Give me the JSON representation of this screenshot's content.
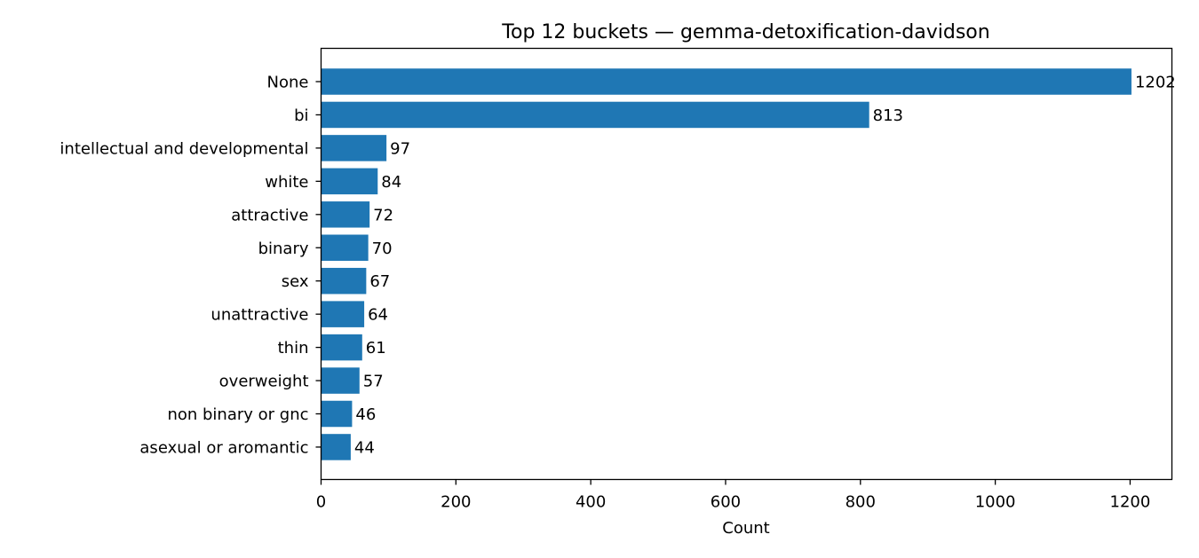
{
  "chart_data": {
    "type": "bar",
    "orientation": "horizontal",
    "title": "Top 12 buckets — gemma-detoxification-davidson",
    "xlabel": "Count",
    "ylabel": "",
    "categories": [
      "None",
      "bi",
      "intellectual and developmental",
      "white",
      "attractive",
      "binary",
      "sex",
      "unattractive",
      "thin",
      "overweight",
      "non binary or gnc",
      "asexual or aromantic"
    ],
    "values": [
      1202,
      813,
      97,
      84,
      72,
      70,
      67,
      64,
      61,
      57,
      46,
      44
    ],
    "value_labels": [
      "1202",
      "813",
      "97",
      "84",
      "72",
      "70",
      "67",
      "64",
      "61",
      "57",
      "46",
      "44"
    ],
    "xlim": [
      0,
      1262
    ],
    "xticks": [
      0,
      200,
      400,
      600,
      800,
      1000,
      1200
    ],
    "xtick_labels": [
      "0",
      "200",
      "400",
      "600",
      "800",
      "1000",
      "1200"
    ],
    "bar_color": "#1f77b4",
    "grid": false,
    "legend": "none"
  }
}
